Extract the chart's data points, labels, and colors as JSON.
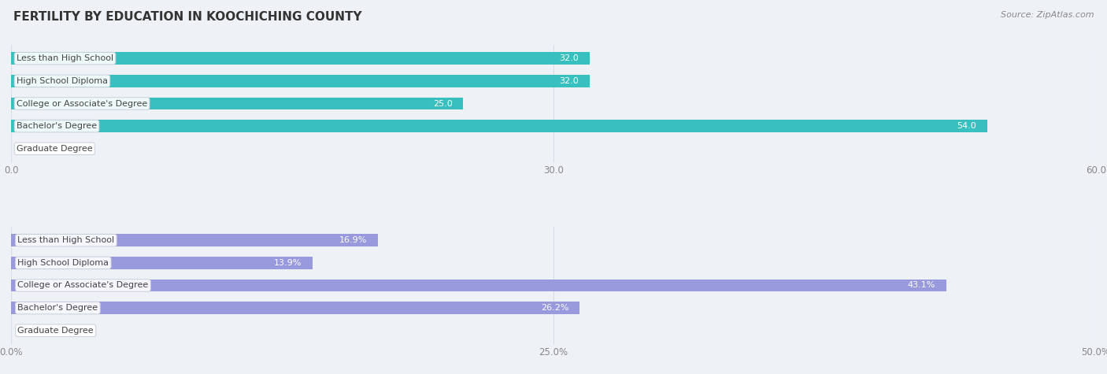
{
  "title": "FERTILITY BY EDUCATION IN KOOCHICHING COUNTY",
  "source": "Source: ZipAtlas.com",
  "chart1": {
    "categories": [
      "Less than High School",
      "High School Diploma",
      "College or Associate's Degree",
      "Bachelor's Degree",
      "Graduate Degree"
    ],
    "values": [
      32.0,
      32.0,
      25.0,
      54.0,
      0.0
    ],
    "xlim": [
      0,
      60
    ],
    "xticks": [
      0.0,
      30.0,
      60.0
    ],
    "xtick_labels": [
      "0.0",
      "30.0",
      "60.0"
    ],
    "bar_color": "#38bfbf",
    "bg_color": "#eef2f7"
  },
  "chart2": {
    "categories": [
      "Less than High School",
      "High School Diploma",
      "College or Associate's Degree",
      "Bachelor's Degree",
      "Graduate Degree"
    ],
    "values": [
      16.9,
      13.9,
      43.1,
      26.2,
      0.0
    ],
    "xlim": [
      0,
      50
    ],
    "xticks": [
      0.0,
      25.0,
      50.0
    ],
    "xtick_labels": [
      "0.0%",
      "25.0%",
      "50.0%"
    ],
    "bar_color": "#9999dd",
    "bg_color": "#eef2f7"
  },
  "title_fontsize": 11,
  "source_fontsize": 8,
  "label_fontsize": 8,
  "tick_fontsize": 8.5,
  "bar_height": 0.55,
  "title_color": "#333333",
  "tick_color": "#888888",
  "grid_color": "#d8dde8",
  "fig_bg": "#eef2f7"
}
